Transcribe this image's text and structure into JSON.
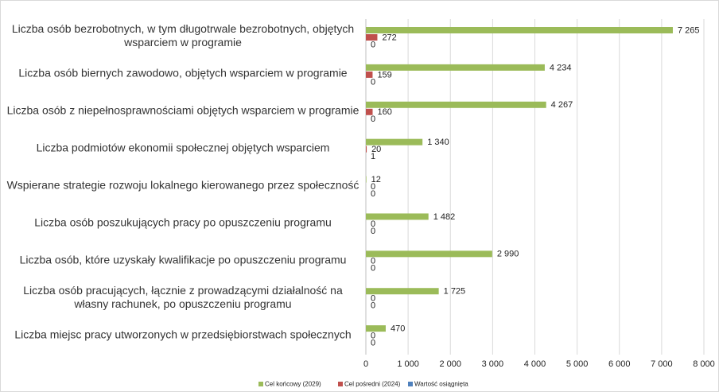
{
  "chart_data": {
    "type": "hbar",
    "categories": [
      "Liczba osób bezrobotnych, w tym długotrwale bezrobotnych, objętych wsparciem w programie",
      "Liczba osób biernych zawodowo, objętych wsparciem w programie",
      "Liczba osób z niepełnosprawnościami objętych wsparciem w programie",
      "Liczba podmiotów ekonomii społecznej objętych wsparciem",
      "Wspierane strategie rozwoju lokalnego kierowanego przez społeczność",
      "Liczba osób poszukujących pracy po opuszczeniu programu",
      "Liczba osób, które uzyskały kwalifikacje po opuszczeniu programu",
      "Liczba osób pracujących, łącznie z prowadzącymi działalność na własny rachunek, po opuszczeniu programu",
      "Liczba miejsc pracy utworzonych w przedsiębiorstwach społecznych"
    ],
    "series": [
      {
        "name": "Cel końcowy (2029)",
        "color": "#9bbb59",
        "values": [
          7265,
          4234,
          4267,
          1340,
          12,
          1482,
          2990,
          1725,
          470
        ],
        "value_labels": [
          "7 265",
          "4 234",
          "4 267",
          "1 340",
          "12",
          "1 482",
          "2 990",
          "1 725",
          "470"
        ]
      },
      {
        "name": "Cel pośredni (2024)",
        "color": "#c0504d",
        "values": [
          272,
          159,
          160,
          20,
          0,
          0,
          0,
          0,
          0
        ],
        "value_labels": [
          "272",
          "159",
          "160",
          "20",
          "0",
          "0",
          "0",
          "0",
          "0"
        ]
      },
      {
        "name": "Wartość osiągnięta",
        "color": "#4f81bd",
        "values": [
          0,
          0,
          0,
          1,
          0,
          0,
          0,
          0,
          0
        ],
        "value_labels": [
          "0",
          "0",
          "0",
          "1",
          "0",
          "0",
          "0",
          "0",
          "0"
        ]
      }
    ],
    "xlim": [
      0,
      8000
    ],
    "xticks": [
      0,
      {
        "value": 1000,
        "label": "1 000"
      },
      {
        "value": 2000,
        "label": "2 000"
      },
      {
        "value": 3000,
        "label": "3 000"
      },
      {
        "value": 4000,
        "label": "4 000"
      },
      {
        "value": 5000,
        "label": "5 000"
      },
      {
        "value": 6000,
        "label": "6 000"
      },
      {
        "value": 7000,
        "label": "7 000"
      },
      {
        "value": 8000,
        "label": "8 000"
      }
    ],
    "grid": true,
    "legend": "bottom"
  }
}
